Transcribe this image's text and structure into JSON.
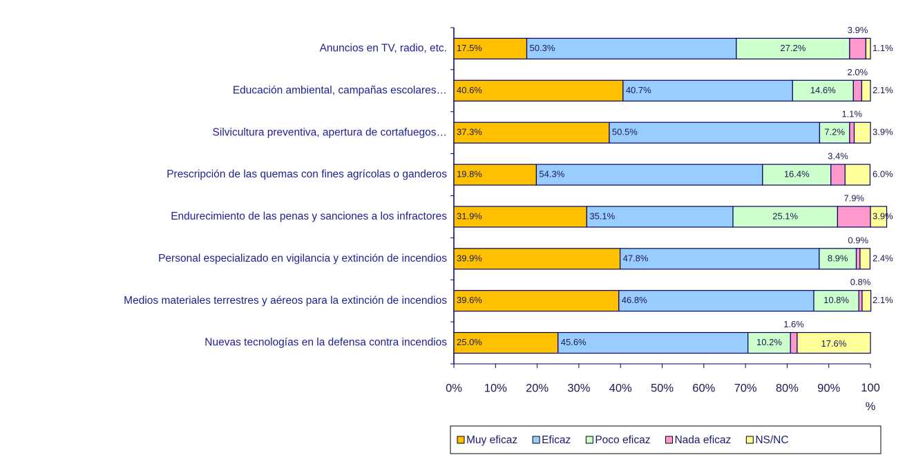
{
  "chart_data": {
    "type": "stacked_bar_horizontal",
    "categories": [
      "Anuncios en TV, radio, etc.",
      "Educación ambiental, campañas escolares…",
      "Silvicultura preventiva, apertura de cortafuegos…",
      "Prescripción de las quemas con fines agrícolas o ganderos",
      "Endurecimiento de las penas y sanciones a los infractores",
      "Personal especializado en vigilancia y extinción de incendios",
      "Medios materiales terrestres y aéreos para la extinción de incendios",
      "Nuevas tecnologías en la defensa contra incendios"
    ],
    "series": [
      {
        "name": "Muy eficaz",
        "color": "#FFC000",
        "values": [
          17.5,
          40.6,
          37.3,
          19.8,
          31.9,
          39.9,
          39.6,
          25.0
        ],
        "value_labels": [
          "17.5%",
          "40.6%",
          "37.3%",
          "19.8%",
          "31.9%",
          "39.9%",
          "39.6%",
          "25.0%"
        ]
      },
      {
        "name": "Eficaz",
        "color": "#99CCFF",
        "values": [
          50.3,
          40.7,
          50.5,
          54.3,
          35.1,
          47.8,
          46.8,
          45.6
        ],
        "value_labels": [
          "50.3%",
          "40.7%",
          "50.5%",
          "54.3%",
          "35.1%",
          "47.8%",
          "46.8%",
          "45.6%"
        ]
      },
      {
        "name": "Poco eficaz",
        "color": "#CCFFCC",
        "values": [
          27.2,
          14.6,
          7.2,
          16.4,
          25.1,
          8.9,
          10.8,
          10.2
        ],
        "value_labels": [
          "27.2%",
          "14.6%",
          "7.2%",
          "16.4%",
          "25.1%",
          "8.9%",
          "10.8%",
          "10.2%"
        ]
      },
      {
        "name": "Nada eficaz",
        "color": "#FF99CC",
        "values": [
          3.9,
          2.0,
          1.1,
          3.4,
          7.9,
          0.9,
          0.8,
          1.6
        ],
        "value_labels": [
          "3.9%",
          "2.0%",
          "1.1%",
          "3.4%",
          "7.9%",
          "0.9%",
          "0.8%",
          "1.6%"
        ]
      },
      {
        "name": "NS/NC",
        "color": "#FFFF99",
        "values": [
          1.1,
          2.1,
          3.9,
          6.0,
          3.9,
          2.4,
          2.1,
          17.6
        ],
        "value_labels": [
          "1.1%",
          "2.1%",
          "3.9%",
          "6.0%",
          "3.9%",
          "2.4%",
          "2.1%",
          "17.6%"
        ]
      }
    ],
    "xlim": [
      0,
      100
    ],
    "xticks": [
      {
        "value": 0,
        "label": "0%"
      },
      {
        "value": 10,
        "label": "10%"
      },
      {
        "value": 20,
        "label": "20%"
      },
      {
        "value": 30,
        "label": "30%"
      },
      {
        "value": 40,
        "label": "40%"
      },
      {
        "value": 50,
        "label": "50%"
      },
      {
        "value": 60,
        "label": "60%"
      },
      {
        "value": 70,
        "label": "70%"
      },
      {
        "value": 80,
        "label": "80%"
      },
      {
        "value": 90,
        "label": "90%"
      },
      {
        "value": 100,
        "label": "100 %"
      }
    ],
    "legend": "bottom"
  }
}
